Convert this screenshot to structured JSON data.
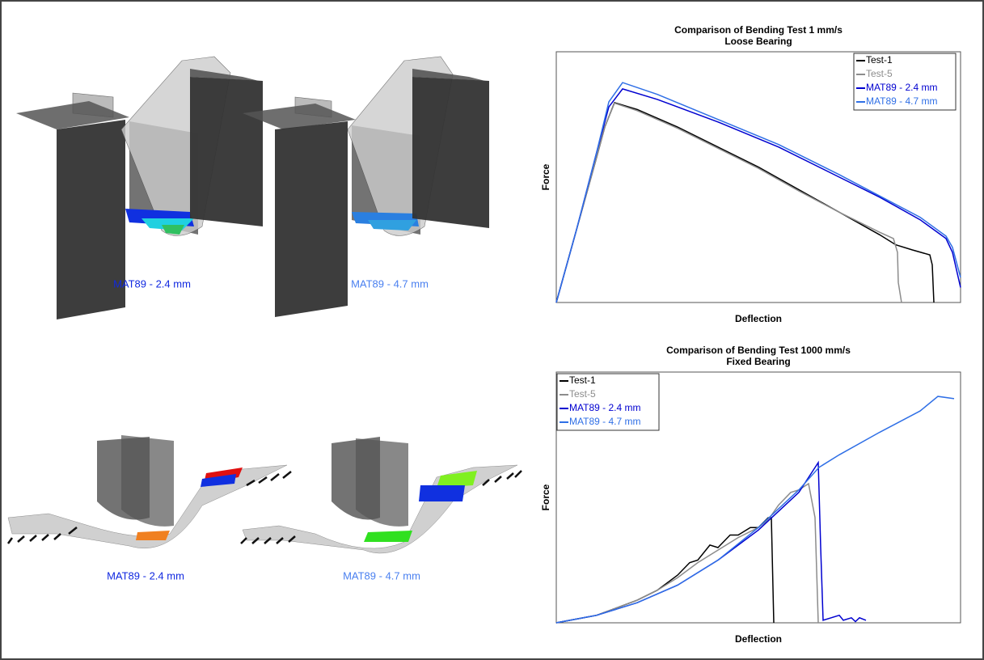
{
  "renders": [
    {
      "label": "MAT89 - 2.4 mm",
      "color": "#1028e0"
    },
    {
      "label": "MAT89 - 4.7 mm",
      "color": "#4a80f0"
    },
    {
      "label": "MAT89 - 2.4 mm",
      "color": "#1028e0"
    },
    {
      "label": "MAT89 - 4.7 mm",
      "color": "#4a80f0"
    }
  ],
  "chart_data": [
    {
      "type": "line",
      "title": "Comparison of Bending Test 1 mm/s",
      "subtitle": "Loose Bearing",
      "x_label": "Deflection",
      "y_label": "Force",
      "xlim": [
        0,
        100
      ],
      "ylim": [
        0,
        100
      ],
      "legend": "upper right",
      "series": [
        {
          "name": "Test-1",
          "color": "#000000",
          "x": [
            0,
            5,
            10,
            12,
            14.4,
            20,
            30,
            40,
            50,
            60,
            70,
            80,
            84,
            88,
            92.4,
            93,
            93.4
          ],
          "values": [
            0,
            29,
            58,
            70,
            79.7,
            77,
            70,
            62,
            54,
            45,
            36,
            27,
            23,
            21,
            19,
            15,
            0
          ]
        },
        {
          "name": "Test-5",
          "color": "#8c8c8c",
          "x": [
            0,
            5,
            10,
            12,
            14.4,
            20,
            30,
            40,
            50,
            60,
            70,
            80,
            83.4,
            84.4,
            84.6,
            85.4
          ],
          "values": [
            0,
            29,
            58,
            70,
            79.5,
            76.5,
            69.5,
            61.5,
            53.5,
            44.5,
            36,
            28,
            25.5,
            20,
            8,
            0
          ]
        },
        {
          "name": "MAT89 - 2.4 mm",
          "color": "#0000d0",
          "x": [
            0,
            5,
            10,
            13,
            16.4,
            25,
            40,
            55,
            70,
            80,
            90,
            96.4,
            98,
            100
          ],
          "values": [
            0,
            29,
            60,
            78,
            85.2,
            81,
            72,
            62,
            50,
            42,
            33,
            25.5,
            20,
            6
          ]
        },
        {
          "name": "MAT89 - 4.7 mm",
          "color": "#2f6fe6",
          "x": [
            0,
            5,
            10,
            13,
            16.4,
            25,
            40,
            55,
            70,
            80,
            90,
            96.4,
            98,
            100
          ],
          "values": [
            0,
            29,
            60,
            80,
            87.7,
            83,
            73,
            63,
            51,
            42.5,
            34,
            26.5,
            22,
            10
          ]
        }
      ]
    },
    {
      "type": "line",
      "title": "Comparison of Bending Test 1000 mm/s",
      "subtitle": "Fixed Bearing",
      "x_label": "Deflection",
      "y_label": "Force",
      "xlim": [
        0,
        100
      ],
      "ylim": [
        0,
        100
      ],
      "legend": "upper left",
      "series": [
        {
          "name": "Test-1",
          "color": "#000000",
          "x": [
            0,
            10,
            20,
            25,
            30,
            33,
            35,
            38,
            40,
            43,
            45,
            48,
            50,
            52.4,
            53.2,
            53.8
          ],
          "values": [
            0,
            3,
            9,
            13,
            19,
            24,
            25,
            31,
            30,
            35,
            35,
            38,
            38,
            41.9,
            41.9,
            0
          ]
        },
        {
          "name": "Test-5",
          "color": "#8c8c8c",
          "x": [
            0,
            10,
            20,
            25,
            30,
            35,
            40,
            45,
            50,
            52.4,
            55,
            58,
            60,
            62.4,
            64,
            64.8
          ],
          "values": [
            0,
            3,
            9,
            13,
            18,
            24,
            29,
            34,
            38,
            41,
            47,
            52,
            53,
            55.5,
            42,
            0
          ]
        },
        {
          "name": "MAT89 - 2.4 mm",
          "color": "#0000d0",
          "x": [
            0,
            10,
            20,
            30,
            40,
            50,
            60,
            64.8,
            65.4,
            66,
            68,
            70,
            71,
            73,
            74,
            75,
            76.6
          ],
          "values": [
            0,
            3,
            8,
            15,
            25,
            37,
            52,
            63.9,
            30,
            1,
            2,
            3,
            1,
            2,
            0.5,
            2,
            1
          ]
        },
        {
          "name": "MAT89 - 4.7 mm",
          "color": "#2f6fe6",
          "x": [
            0,
            10,
            20,
            30,
            40,
            50,
            60,
            65,
            70,
            80,
            90,
            94.4,
            98.4
          ],
          "values": [
            0,
            3,
            8,
            15,
            25,
            38,
            53,
            62,
            67,
            76,
            84.5,
            90.3,
            89.4
          ]
        }
      ]
    }
  ]
}
